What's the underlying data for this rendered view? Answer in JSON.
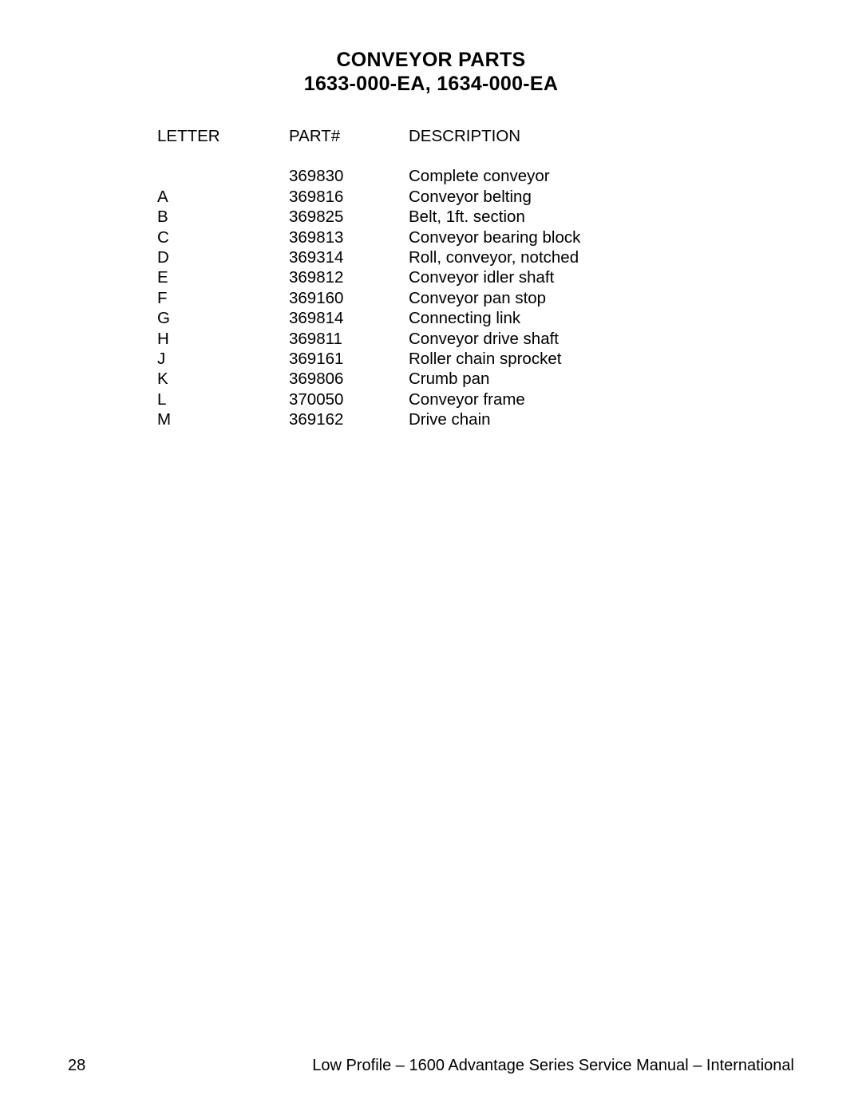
{
  "title": {
    "line1": "CONVEYOR PARTS",
    "line2": "1633-000-EA, 1634-000-EA"
  },
  "table": {
    "columns": {
      "letter": "LETTER",
      "part": "PART#",
      "description": "DESCRIPTION"
    },
    "rows": [
      {
        "letter": "",
        "part": "369830",
        "description": "Complete conveyor"
      },
      {
        "letter": "A",
        "part": "369816",
        "description": "Conveyor belting"
      },
      {
        "letter": "B",
        "part": "369825",
        "description": "Belt, 1ft. section"
      },
      {
        "letter": "C",
        "part": "369813",
        "description": "Conveyor bearing block"
      },
      {
        "letter": "D",
        "part": "369314",
        "description": "Roll, conveyor, notched"
      },
      {
        "letter": "E",
        "part": "369812",
        "description": "Conveyor idler shaft"
      },
      {
        "letter": "F",
        "part": "369160",
        "description": "Conveyor pan stop"
      },
      {
        "letter": "G",
        "part": "369814",
        "description": "Connecting link"
      },
      {
        "letter": "H",
        "part": "369811",
        "description": "Conveyor drive shaft"
      },
      {
        "letter": "J",
        "part": "369161",
        "description": "Roller chain sprocket"
      },
      {
        "letter": "K",
        "part": "369806",
        "description": "Crumb pan"
      },
      {
        "letter": "L",
        "part": "370050",
        "description": "Conveyor frame"
      },
      {
        "letter": "M",
        "part": "369162",
        "description": "Drive chain"
      }
    ]
  },
  "footer": {
    "page_number": "28",
    "text": "Low Profile – 1600 Advantage Series Service Manual – International"
  }
}
